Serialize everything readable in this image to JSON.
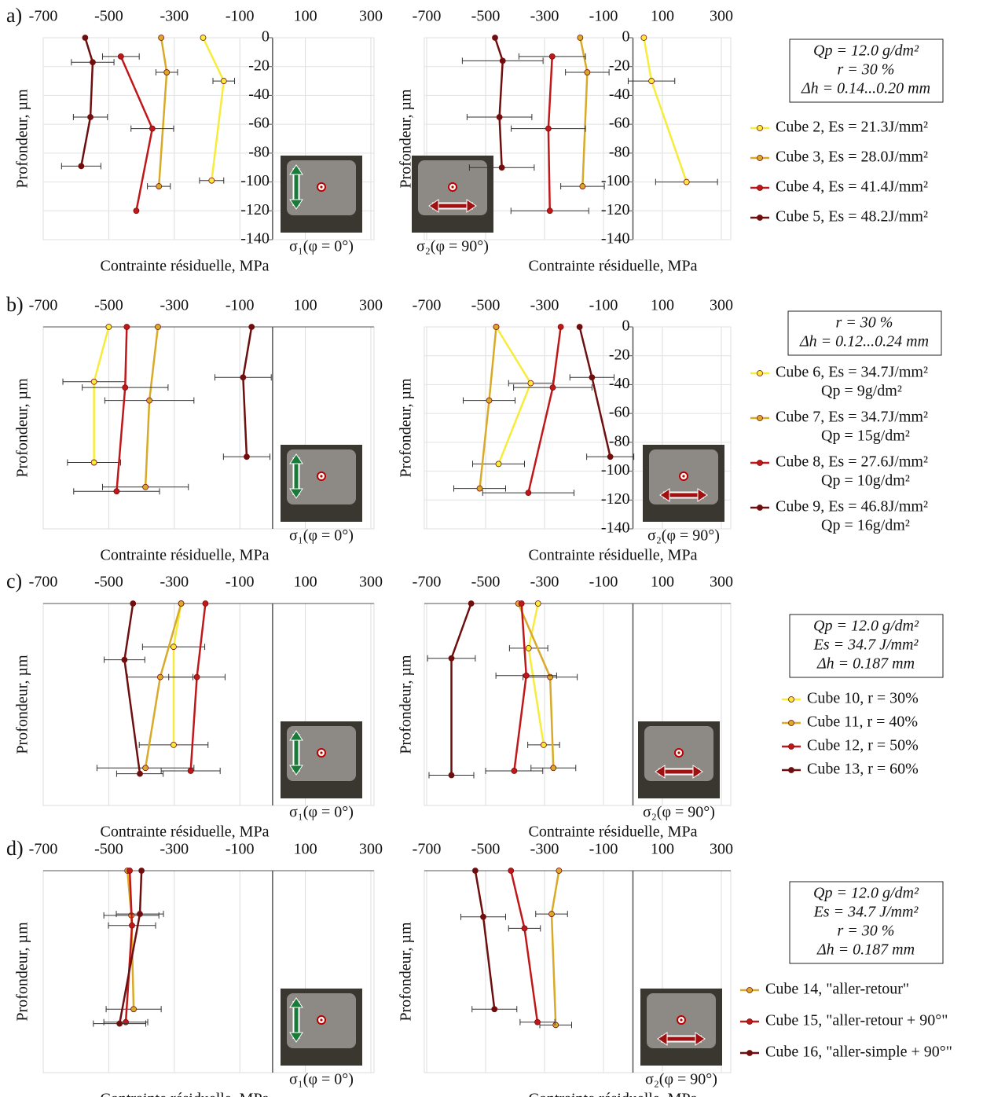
{
  "chart_data": [
    {
      "type": "line",
      "xlim": [
        -700,
        300
      ],
      "ylim": [
        -140,
        0
      ],
      "xticks": [
        -700,
        -500,
        -300,
        -100,
        100,
        300
      ],
      "yticks": [
        0,
        -20,
        -40,
        -60,
        -80,
        -100,
        -120,
        -140
      ],
      "xlabel": "Contrainte résiduelle, MPa",
      "ylabel": "Profondeur, µm",
      "stress_label": "σ₁(φ = 0°)",
      "series": [
        {
          "color": "#f7ec3a",
          "x": [
            -212,
            -149,
            -186
          ],
          "y": [
            0,
            -30,
            -99
          ],
          "xerr": [
            0,
            33,
            37
          ]
        },
        {
          "color": "#d9aa28",
          "x": [
            -340,
            -323,
            -347
          ],
          "y": [
            0,
            -24,
            -103
          ],
          "xerr": [
            0,
            33,
            35
          ]
        },
        {
          "color": "#c0181a",
          "x": [
            -463,
            -367,
            -416
          ],
          "y": [
            -13,
            -63,
            -120
          ],
          "xerr": [
            56,
            65,
            0
          ]
        },
        {
          "color": "#6e0f0f",
          "x": [
            -572,
            -549,
            -556,
            -584
          ],
          "y": [
            0,
            -17,
            -55,
            -89
          ],
          "xerr": [
            0,
            65,
            52,
            60
          ]
        }
      ]
    },
    {
      "type": "line",
      "xlim": [
        -700,
        300
      ],
      "ylim": [
        -140,
        0
      ],
      "xticks": [
        -700,
        -500,
        -300,
        -100,
        100,
        300
      ],
      "yticks": [
        0,
        -20,
        -40,
        -60,
        -80,
        -100,
        -120,
        -140
      ],
      "xlabel": "Contrainte résiduelle, MPa",
      "ylabel": "Profondeur, µm",
      "stress_label": "σ₂(φ = 90°)",
      "series": [
        {
          "color": "#f7ec3a",
          "x": [
            37,
            63,
            182
          ],
          "y": [
            0,
            -30,
            -100
          ],
          "xerr": [
            0,
            79,
            105
          ]
        },
        {
          "color": "#d9aa28",
          "x": [
            -179,
            -155,
            -171
          ],
          "y": [
            0,
            -24,
            -103
          ],
          "xerr": [
            0,
            74,
            74
          ]
        },
        {
          "color": "#c0181a",
          "x": [
            -274,
            -287,
            -282
          ],
          "y": [
            -13,
            -63,
            -120
          ],
          "xerr": [
            113,
            126,
            132
          ]
        },
        {
          "color": "#6e0f0f",
          "x": [
            -468,
            -442,
            -453,
            -445
          ],
          "y": [
            0,
            -16,
            -55,
            -90
          ],
          "xerr": [
            0,
            137,
            110,
            110
          ]
        }
      ]
    },
    {
      "type": "line",
      "xlim": [
        -700,
        300
      ],
      "ylim": [
        -140,
        0
      ],
      "xticks": [
        -700,
        -500,
        -300,
        -100,
        100,
        300
      ],
      "xlabel": "Contrainte résiduelle, MPa",
      "ylabel": "Profondeur, µm",
      "stress_label": "σ₁(φ = 0°)",
      "series": [
        {
          "color": "#f7ec3a",
          "x": [
            -500,
            -545,
            -545
          ],
          "y": [
            0,
            -38,
            -94
          ],
          "xerr": [
            0,
            95,
            81
          ]
        },
        {
          "color": "#d9aa28",
          "x": [
            -350,
            -376,
            -388
          ],
          "y": [
            0,
            -51,
            -111
          ],
          "xerr": [
            0,
            136,
            131
          ]
        },
        {
          "color": "#c0181a",
          "x": [
            -445,
            -450,
            -476
          ],
          "y": [
            0,
            -42,
            -114
          ],
          "xerr": [
            0,
            131,
            131
          ]
        },
        {
          "color": "#6e0f0f",
          "x": [
            -64,
            -90,
            -79
          ],
          "y": [
            0,
            -35,
            -90
          ],
          "xerr": [
            0,
            86,
            71
          ]
        }
      ]
    },
    {
      "type": "line",
      "xlim": [
        -700,
        300
      ],
      "ylim": [
        -140,
        0
      ],
      "xticks": [
        -700,
        -500,
        -300,
        -100,
        100,
        300
      ],
      "yticks": [
        0,
        -20,
        -40,
        -60,
        -80,
        -100,
        -120,
        -140
      ],
      "xlabel": "Contrainte résiduelle, MPa",
      "ylabel": "Profondeur, µm",
      "stress_label": "σ₂(φ = 90°)",
      "series": [
        {
          "color": "#f7ec3a",
          "x": [
            -464,
            -347,
            -456
          ],
          "y": [
            0,
            -39,
            -95
          ],
          "xerr": [
            0,
            75,
            88
          ]
        },
        {
          "color": "#d9aa28",
          "x": [
            -464,
            -488,
            -520
          ],
          "y": [
            0,
            -51,
            -112
          ],
          "xerr": [
            0,
            88,
            88
          ]
        },
        {
          "color": "#c0181a",
          "x": [
            -245,
            -272,
            -355
          ],
          "y": [
            0,
            -42,
            -115
          ],
          "xerr": [
            0,
            133,
            155
          ]
        },
        {
          "color": "#6e0f0f",
          "x": [
            -181,
            -139,
            -77
          ],
          "y": [
            0,
            -35,
            -90
          ],
          "xerr": [
            0,
            75,
            80
          ]
        }
      ]
    },
    {
      "type": "line",
      "xlim": [
        -700,
        300
      ],
      "ylim": [
        -140,
        0
      ],
      "xticks": [
        -700,
        -500,
        -300,
        -100,
        100,
        300
      ],
      "xlabel": "Contrainte résiduelle, MPa",
      "ylabel": "Profondeur, µm",
      "stress_label": "σ₁(φ = 0°)",
      "series": [
        {
          "color": "#f7ec3a",
          "x": [
            -279,
            -302,
            -302
          ],
          "y": [
            0,
            -30,
            -98
          ],
          "xerr": [
            0,
            95,
            105
          ]
        },
        {
          "color": "#d9aa28",
          "x": [
            -279,
            -343,
            -388
          ],
          "y": [
            0,
            -51,
            -114
          ],
          "xerr": [
            0,
            100,
            148
          ]
        },
        {
          "color": "#c0181a",
          "x": [
            -205,
            -231,
            -250
          ],
          "y": [
            0,
            -51,
            -116
          ],
          "xerr": [
            0,
            86,
            90
          ]
        },
        {
          "color": "#6e0f0f",
          "x": [
            -426,
            -452,
            -405
          ],
          "y": [
            0,
            -39,
            -118
          ],
          "xerr": [
            0,
            62,
            71
          ]
        }
      ]
    },
    {
      "type": "line",
      "xlim": [
        -700,
        300
      ],
      "ylim": [
        -140,
        0
      ],
      "xticks": [
        -700,
        -500,
        -300,
        -100,
        100,
        300
      ],
      "xlabel": "Contrainte résiduelle, MPa",
      "ylabel": "Profondeur, µm",
      "stress_label": "σ₂(φ = 90°)",
      "series": [
        {
          "color": "#f7ec3a",
          "x": [
            -322,
            -354,
            -303
          ],
          "y": [
            0,
            -31,
            -98
          ],
          "xerr": [
            0,
            65,
            54
          ]
        },
        {
          "color": "#d9aa28",
          "x": [
            -389,
            -281,
            -270
          ],
          "y": [
            0,
            -51,
            -114
          ],
          "xerr": [
            0,
            92,
            76
          ]
        },
        {
          "color": "#c0181a",
          "x": [
            -378,
            -362,
            -403
          ],
          "y": [
            0,
            -50,
            -116
          ],
          "xerr": [
            0,
            103,
            97
          ]
        },
        {
          "color": "#6e0f0f",
          "x": [
            -549,
            -616,
            -616
          ],
          "y": [
            0,
            -38,
            -119
          ],
          "xerr": [
            0,
            81,
            76
          ]
        }
      ]
    },
    {
      "type": "line",
      "xlim": [
        -700,
        300
      ],
      "ylim": [
        -140,
        0
      ],
      "xticks": [
        -700,
        -500,
        -300,
        -100,
        100,
        300
      ],
      "xlabel": "Contrainte résiduelle, MPa",
      "ylabel": "Profondeur, µm",
      "stress_label": "σ₁(φ = 0°)",
      "series": [
        {
          "color": "#d9aa28",
          "x": [
            -443,
            -431,
            -424
          ],
          "y": [
            0,
            -31,
            -96
          ],
          "xerr": [
            0,
            84,
            84
          ]
        },
        {
          "color": "#c0181a",
          "x": [
            -436,
            -429,
            -448
          ],
          "y": [
            0,
            -38,
            -105
          ],
          "xerr": [
            0,
            72,
            67
          ]
        },
        {
          "color": "#6e0f0f",
          "x": [
            -400,
            -405,
            -467
          ],
          "y": [
            0,
            -30,
            -106
          ],
          "xerr": [
            0,
            72,
            80
          ]
        }
      ]
    },
    {
      "type": "line",
      "xlim": [
        -700,
        300
      ],
      "ylim": [
        -140,
        0
      ],
      "xticks": [
        -700,
        -500,
        -300,
        -100,
        100,
        300
      ],
      "xlabel": "Contrainte résiduelle, MPa",
      "ylabel": "Profondeur, µm",
      "stress_label": "σ₂(φ = 90°)",
      "series": [
        {
          "color": "#d9aa28",
          "x": [
            -251,
            -276,
            -262
          ],
          "y": [
            0,
            -30,
            -107
          ],
          "xerr": [
            0,
            54,
            54
          ]
        },
        {
          "color": "#c0181a",
          "x": [
            -414,
            -368,
            -324
          ],
          "y": [
            0,
            -40,
            -105
          ],
          "xerr": [
            0,
            54,
            59
          ]
        },
        {
          "color": "#6e0f0f",
          "x": [
            -535,
            -508,
            -470
          ],
          "y": [
            0,
            -32,
            -96
          ],
          "xerr": [
            0,
            76,
            76
          ]
        }
      ]
    }
  ],
  "panels": [
    {
      "label": "a)",
      "info": [
        "Qp = 12.0 g/dm²",
        "r = 30 %",
        "Δh = 0.14...0.20 mm"
      ],
      "legend": [
        {
          "name": "Cube 2, Es = 21.3J/mm²",
          "color": "#f7ec3a"
        },
        {
          "name": "Cube 3, Es = 28.0J/mm²",
          "color": "#d9aa28"
        },
        {
          "name": "Cube 4, Es = 41.4J/mm²",
          "color": "#c0181a"
        },
        {
          "name": "Cube 5, Es = 48.2J/mm²",
          "color": "#6e0f0f"
        }
      ]
    },
    {
      "label": "b)",
      "info": [
        "r = 30 %",
        "Δh = 0.12...0.24 mm"
      ],
      "legend": [
        {
          "name": "Cube 6, Es = 34.7J/mm²",
          "note": "Qp = 9g/dm²",
          "color": "#f7ec3a"
        },
        {
          "name": "Cube 7, Es = 34.7J/mm²",
          "note": "Qp = 15g/dm²",
          "color": "#d9aa28"
        },
        {
          "name": "Cube 8, Es = 27.6J/mm²",
          "note": "Qp = 10g/dm²",
          "color": "#c0181a"
        },
        {
          "name": "Cube 9, Es = 46.8J/mm²",
          "note": "Qp = 16g/dm²",
          "color": "#6e0f0f"
        }
      ]
    },
    {
      "label": "c)",
      "info": [
        "Qp = 12.0 g/dm²",
        "Es = 34.7 J/mm²",
        "Δh = 0.187 mm"
      ],
      "legend": [
        {
          "name": "Cube 10, r = 30%",
          "color": "#f7ec3a"
        },
        {
          "name": "Cube 11, r = 40%",
          "color": "#d9aa28"
        },
        {
          "name": "Cube 12, r = 50%",
          "color": "#c0181a"
        },
        {
          "name": "Cube 13, r = 60%",
          "color": "#6e0f0f"
        }
      ]
    },
    {
      "label": "d)",
      "info": [
        "Qp = 12.0 g/dm²",
        "Es = 34.7 J/mm²",
        "r = 30 %",
        "Δh = 0.187 mm"
      ],
      "legend": [
        {
          "name": "Cube 14, \"aller-retour\"",
          "color": "#d9aa28"
        },
        {
          "name": "Cube 15, \"aller-retour + 90°\"",
          "color": "#c0181a"
        },
        {
          "name": "Cube 16, \"aller-simple + 90°\"",
          "color": "#6e0f0f"
        }
      ]
    }
  ]
}
